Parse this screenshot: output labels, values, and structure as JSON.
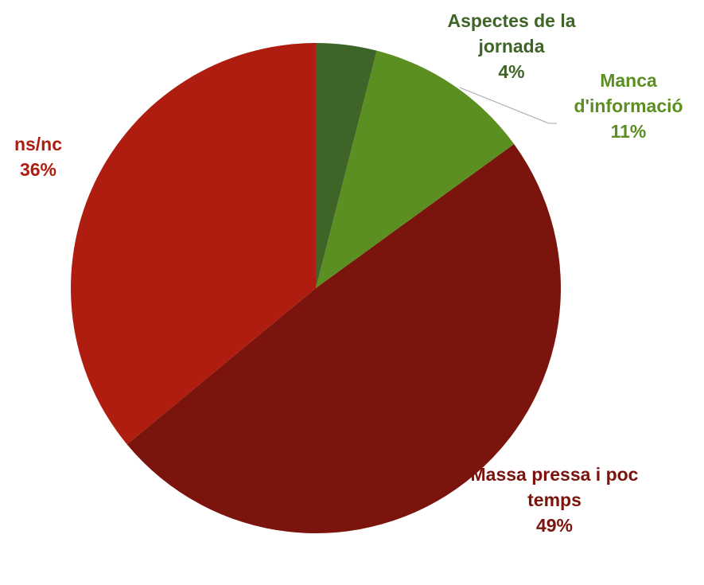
{
  "chart_data": {
    "type": "pie",
    "categories": [
      "Aspectes de la jornada",
      "Manca d'informació",
      "Massa pressa i poc temps",
      "ns/nc"
    ],
    "values": [
      4,
      11,
      49,
      36
    ],
    "value_labels": [
      "4%",
      "11%",
      "49%",
      "36%"
    ],
    "colors": [
      "#3f6428",
      "#5b8f22",
      "#7a140c",
      "#ae1d10"
    ]
  }
}
